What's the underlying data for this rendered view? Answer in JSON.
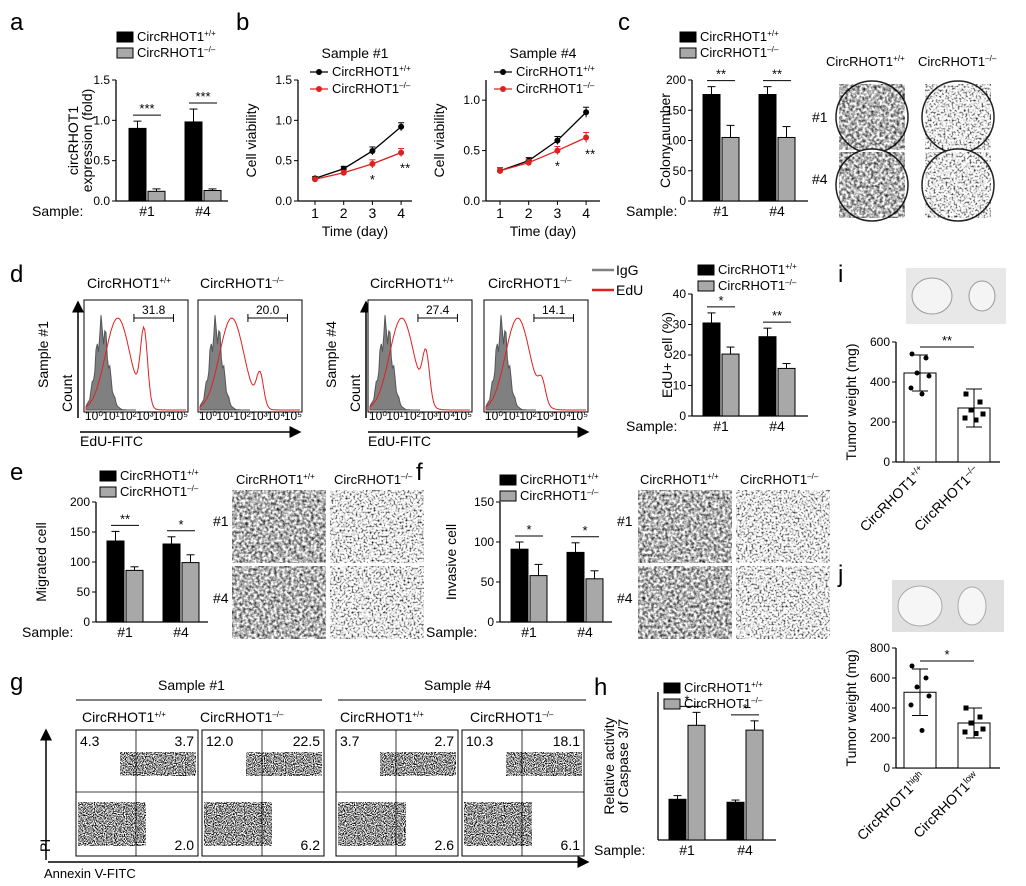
{
  "panels": {
    "a": "a",
    "b": "b",
    "c": "c",
    "d": "d",
    "e": "e",
    "f": "f",
    "g": "g",
    "h": "h",
    "i": "i",
    "j": "j"
  },
  "genotype": {
    "wt": "CircRHOT1",
    "wt_sup": "+/+",
    "ko": "CircRHOT1",
    "ko_sup": "–/–"
  },
  "sample_prefix": "Sample:",
  "sample_labels": [
    "#1",
    "#4"
  ],
  "colors": {
    "black_bar": "#000000",
    "gray_bar": "#a8a8a8",
    "red_line": "#e02020",
    "histogram_gray": "#808080",
    "histogram_red": "#e02020"
  },
  "chart_data": [
    {
      "id": "a",
      "type": "bar",
      "categories": [
        "#1",
        "#4"
      ],
      "series": [
        {
          "name": "CircRHOT1+/+",
          "values": [
            0.9,
            0.98
          ],
          "errors": [
            0.09,
            0.16
          ]
        },
        {
          "name": "CircRHOT1–/–",
          "values": [
            0.12,
            0.13
          ],
          "errors": [
            0.03,
            0.02
          ]
        }
      ],
      "ylabel_line1": "circRHOT1",
      "ylabel_line2": "expression (fold)",
      "ylim": [
        0,
        1.5
      ],
      "yticks": [
        "0.0",
        "0.5",
        "1.0",
        "1.5"
      ],
      "significance": [
        "***",
        "***"
      ]
    },
    {
      "id": "b1",
      "type": "line",
      "title": "Sample #1",
      "x": [
        1,
        2,
        3,
        4
      ],
      "series": [
        {
          "name": "CircRHOT1+/+",
          "values": [
            0.28,
            0.4,
            0.62,
            0.92
          ],
          "errors": [
            0.02,
            0.03,
            0.05,
            0.05
          ]
        },
        {
          "name": "CircRHOT1–/–",
          "values": [
            0.27,
            0.35,
            0.46,
            0.6
          ],
          "errors": [
            0.02,
            0.03,
            0.05,
            0.05
          ]
        }
      ],
      "xlabel": "Time (day)",
      "ylabel": "Cell viability",
      "ylim": [
        0,
        1.5
      ],
      "yticks": [
        "0.0",
        "0.5",
        "1.0",
        "1.5"
      ],
      "xticks": [
        "1",
        "2",
        "3",
        "4"
      ],
      "significance": [
        "*",
        "**"
      ]
    },
    {
      "id": "b2",
      "type": "line",
      "title": "Sample #4",
      "x": [
        1,
        2,
        3,
        4
      ],
      "series": [
        {
          "name": "CircRHOT1+/+",
          "values": [
            0.3,
            0.4,
            0.6,
            0.88
          ],
          "errors": [
            0.03,
            0.03,
            0.04,
            0.05
          ]
        },
        {
          "name": "CircRHOT1–/–",
          "values": [
            0.3,
            0.38,
            0.5,
            0.63
          ],
          "errors": [
            0.03,
            0.03,
            0.04,
            0.05
          ]
        }
      ],
      "xlabel": "Time (day)",
      "ylabel": "Cell viability",
      "ylim": [
        0,
        1.2
      ],
      "yticks": [
        "0.0",
        "0.5",
        "1.0"
      ],
      "xticks": [
        "1",
        "2",
        "3",
        "4"
      ],
      "significance": [
        "*",
        "**"
      ]
    },
    {
      "id": "c",
      "type": "bar",
      "categories": [
        "#1",
        "#4"
      ],
      "series": [
        {
          "name": "CircRHOT1+/+",
          "values": [
            176,
            176
          ],
          "errors": [
            13,
            13
          ]
        },
        {
          "name": "CircRHOT1–/–",
          "values": [
            105,
            105
          ],
          "errors": [
            20,
            18
          ]
        }
      ],
      "ylabel": "Colony number",
      "ylim": [
        0,
        200
      ],
      "yticks": [
        "0",
        "50",
        "100",
        "150",
        "200"
      ],
      "significance": [
        "**",
        "**"
      ]
    },
    {
      "id": "d",
      "type": "bar",
      "categories": [
        "#1",
        "#4"
      ],
      "series": [
        {
          "name": "CircRHOT1+/+",
          "values": [
            30.5,
            26
          ],
          "errors": [
            3.3,
            2.8
          ]
        },
        {
          "name": "CircRHOT1–/–",
          "values": [
            20.3,
            15.6
          ],
          "errors": [
            2.3,
            1.6
          ]
        }
      ],
      "ylabel": "EdU+ cell (%)",
      "ylim": [
        0,
        40
      ],
      "yticks": [
        "0",
        "10",
        "20",
        "30",
        "40"
      ],
      "significance": [
        "*",
        "**"
      ]
    },
    {
      "id": "e",
      "type": "bar",
      "categories": [
        "#1",
        "#4"
      ],
      "series": [
        {
          "name": "CircRHOT1+/+",
          "values": [
            135,
            130
          ],
          "errors": [
            16,
            12
          ]
        },
        {
          "name": "CircRHOT1–/–",
          "values": [
            86,
            99
          ],
          "errors": [
            6,
            13
          ]
        }
      ],
      "ylabel": "Migrated cell",
      "ylim": [
        0,
        200
      ],
      "yticks": [
        "0",
        "50",
        "100",
        "150",
        "200"
      ],
      "significance": [
        "**",
        "*"
      ]
    },
    {
      "id": "f",
      "type": "bar",
      "categories": [
        "#1",
        "#4"
      ],
      "series": [
        {
          "name": "CircRHOT1+/+",
          "values": [
            91,
            87
          ],
          "errors": [
            9,
            12
          ]
        },
        {
          "name": "CircRHOT1–/–",
          "values": [
            58,
            54
          ],
          "errors": [
            14,
            10
          ]
        }
      ],
      "ylabel": "Invasive cell",
      "ylim": [
        0,
        150
      ],
      "yticks": [
        "0",
        "50",
        "100",
        "150"
      ],
      "significance": [
        "*",
        "*"
      ]
    },
    {
      "id": "h",
      "type": "bar",
      "categories": [
        "#1",
        "#4"
      ],
      "series": [
        {
          "name": "CircRHOT1+/+",
          "values": [
            1.1,
            1.02
          ],
          "errors": [
            0.1,
            0.06
          ]
        },
        {
          "name": "CircRHOT1–/–",
          "values": [
            3.1,
            2.97
          ],
          "errors": [
            0.35,
            0.25
          ]
        }
      ],
      "ylabel_line1": "Relative activity",
      "ylabel_line2": "of Caspase 3/7",
      "ylim": [
        0,
        4
      ],
      "yticks": [],
      "significance": [
        "*",
        "*"
      ]
    },
    {
      "id": "i",
      "type": "bar",
      "categories": [
        "CircRHOT1+/+",
        "CircRHOT1–/–"
      ],
      "values": [
        445,
        270
      ],
      "errors": [
        90,
        95
      ],
      "points": [
        [
          540,
          520,
          445,
          430,
          370,
          340
        ],
        [
          340,
          300,
          260,
          240,
          220,
          210
        ]
      ],
      "ylabel": "Tumor weight (mg)",
      "ylim": [
        0,
        600
      ],
      "yticks": [
        "0",
        "200",
        "400",
        "600"
      ],
      "significance": [
        "**"
      ]
    },
    {
      "id": "j",
      "type": "bar",
      "categories": [
        "CircRHOT1high",
        "CircRHOT1low"
      ],
      "values": [
        505,
        300
      ],
      "errors": [
        155,
        100
      ],
      "points": [
        [
          680,
          600,
          540,
          480,
          420,
          250
        ],
        [
          400,
          340,
          300,
          260,
          240,
          230
        ]
      ],
      "ylabel": "Tumor weight (mg)",
      "ylim": [
        0,
        800
      ],
      "yticks": [
        "0",
        "200",
        "400",
        "600",
        "800"
      ],
      "significance": [
        "*"
      ]
    }
  ],
  "flow_d": {
    "legend": [
      "IgG",
      "EdU"
    ],
    "ylabel_1": "Sample #1",
    "ylabel_4": "Sample #4",
    "count_label": "Count",
    "xlabel": "EdU-FITC",
    "gate_values": [
      "31.8",
      "20.0",
      "27.4",
      "14.1"
    ]
  },
  "flow_g": {
    "group_1": "Sample #1",
    "group_4": "Sample #4",
    "ylabel": "PI",
    "xlabel": "Annexin V-FITC",
    "quadrants": [
      {
        "ul": "4.3",
        "ur": "3.7",
        "lr": "2.0"
      },
      {
        "ul": "12.0",
        "ur": "22.5",
        "lr": "6.2"
      },
      {
        "ul": "3.7",
        "ur": "2.7",
        "lr": "2.6"
      },
      {
        "ul": "10.3",
        "ur": "18.1",
        "lr": "6.1"
      }
    ]
  },
  "image_rows": {
    "r1": "#1",
    "r4": "#4"
  }
}
